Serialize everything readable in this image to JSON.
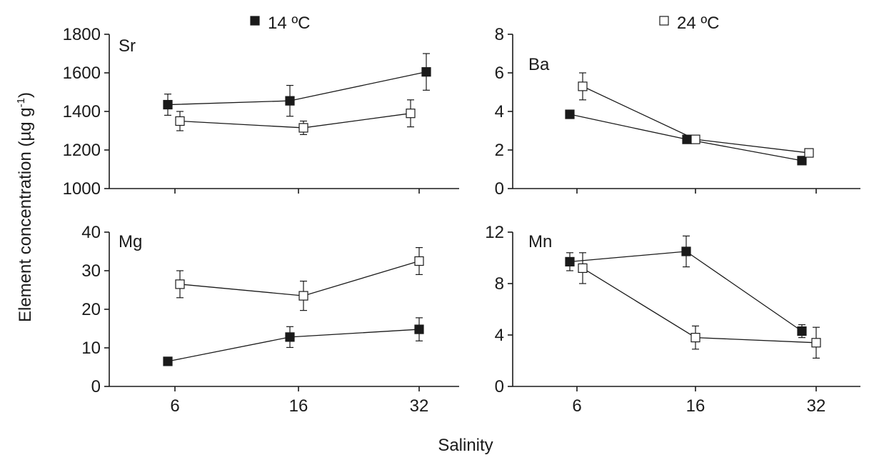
{
  "legend": {
    "items": [
      {
        "label": "14 ºC",
        "marker": "filled-square",
        "color": "#1a1a1a"
      },
      {
        "label": "24 ºC",
        "marker": "open-square",
        "color": "#ffffff"
      }
    ]
  },
  "axis_titles": {
    "y": "Element concentration (µg g",
    "y_sup": "-1",
    "y_close": ")",
    "x": "Salinity"
  },
  "chart_data": [
    {
      "type": "line",
      "panel": "Sr",
      "x": [
        6,
        16,
        32
      ],
      "x_tick_labels": [],
      "ylim": [
        1000,
        1800
      ],
      "y_ticks": [
        1000,
        1200,
        1400,
        1600,
        1800
      ],
      "series": [
        {
          "name": "14 ºC",
          "values": [
            1435,
            1455,
            1605
          ],
          "errors": [
            55,
            80,
            95
          ]
        },
        {
          "name": "24 ºC",
          "values": [
            1350,
            1315,
            1390
          ],
          "errors": [
            50,
            35,
            70
          ]
        }
      ]
    },
    {
      "type": "line",
      "panel": "Ba",
      "x": [
        6,
        16,
        32
      ],
      "x_tick_labels": [],
      "ylim": [
        0,
        8
      ],
      "y_ticks": [
        0,
        2,
        4,
        6,
        8
      ],
      "series": [
        {
          "name": "14 ºC",
          "values": [
            3.85,
            2.55,
            1.45
          ],
          "errors": [
            0,
            0,
            0
          ]
        },
        {
          "name": "24 ºC",
          "values": [
            5.3,
            2.55,
            1.85
          ],
          "errors": [
            0.7,
            0,
            0
          ]
        }
      ]
    },
    {
      "type": "line",
      "panel": "Mg",
      "x": [
        6,
        16,
        32
      ],
      "x_tick_labels": [
        "6",
        "16",
        "32"
      ],
      "ylim": [
        0,
        40
      ],
      "y_ticks": [
        0,
        10,
        20,
        30,
        40
      ],
      "series": [
        {
          "name": "14 ºC",
          "values": [
            6.5,
            12.8,
            14.8
          ],
          "errors": [
            0,
            2.7,
            3.0
          ]
        },
        {
          "name": "24 ºC",
          "values": [
            26.5,
            23.5,
            32.5
          ],
          "errors": [
            3.5,
            3.8,
            3.5
          ]
        }
      ]
    },
    {
      "type": "line",
      "panel": "Mn",
      "x": [
        6,
        16,
        32
      ],
      "x_tick_labels": [
        "6",
        "16",
        "32"
      ],
      "ylim": [
        0,
        12
      ],
      "y_ticks": [
        0,
        4,
        8,
        12
      ],
      "series": [
        {
          "name": "14 ºC",
          "values": [
            9.7,
            10.5,
            4.3
          ],
          "errors": [
            0.7,
            1.2,
            0.5
          ]
        },
        {
          "name": "24 ºC",
          "values": [
            9.2,
            3.8,
            3.4
          ],
          "errors": [
            1.2,
            0.9,
            1.2
          ]
        }
      ]
    }
  ]
}
